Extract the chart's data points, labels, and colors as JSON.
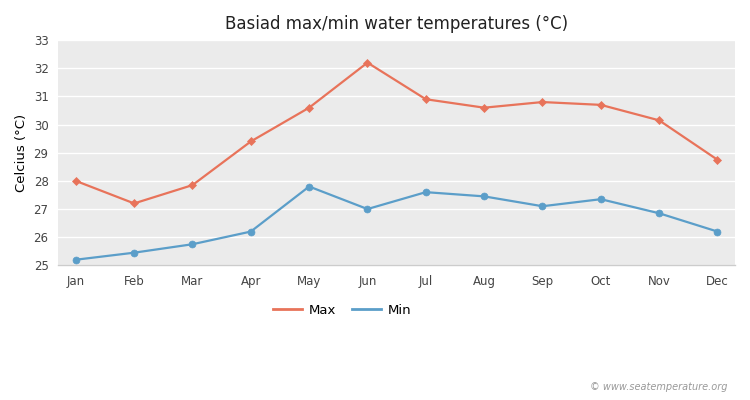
{
  "title": "Basiad max/min water temperatures (°C)",
  "ylabel": "Celcius (°C)",
  "months": [
    "Jan",
    "Feb",
    "Mar",
    "Apr",
    "May",
    "Jun",
    "Jul",
    "Aug",
    "Sep",
    "Oct",
    "Nov",
    "Dec"
  ],
  "max_temps": [
    28.0,
    27.2,
    27.85,
    29.4,
    30.6,
    32.2,
    30.9,
    30.6,
    30.8,
    30.7,
    30.15,
    28.75
  ],
  "min_temps": [
    25.2,
    25.45,
    25.75,
    26.2,
    27.8,
    27.0,
    27.6,
    27.45,
    27.1,
    27.35,
    26.85,
    26.2
  ],
  "max_color": "#e8735a",
  "min_color": "#5b9ec9",
  "outer_bg_color": "#ffffff",
  "plot_bg_color": "#ebebeb",
  "grid_color": "#ffffff",
  "ylim": [
    25,
    33
  ],
  "yticks": [
    25,
    26,
    27,
    28,
    29,
    30,
    31,
    32,
    33
  ],
  "watermark": "© www.seatemperature.org",
  "legend_labels": [
    "Max",
    "Min"
  ]
}
